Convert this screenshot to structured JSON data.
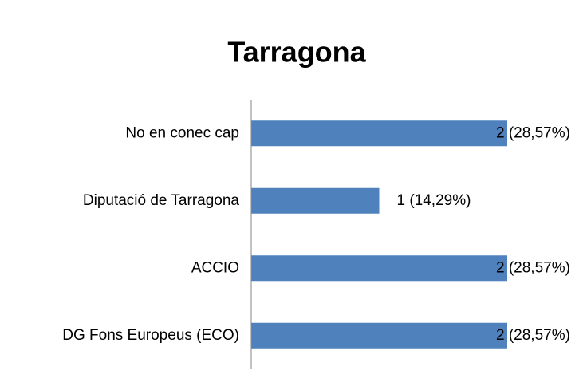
{
  "chart_data": {
    "type": "bar",
    "orientation": "horizontal",
    "title": "Tarragona",
    "categories": [
      "No en conec cap",
      "Diputació de Tarragona",
      "ACCIO",
      "DG Fons Europeus (ECO)"
    ],
    "values": [
      2,
      1,
      2,
      2
    ],
    "value_labels": [
      "2 (28,57%)",
      "1 (14,29%)",
      "2 (28,57%)",
      "2 (28,57%)"
    ],
    "color": "#4f81bd",
    "xlim": [
      0,
      2
    ]
  }
}
